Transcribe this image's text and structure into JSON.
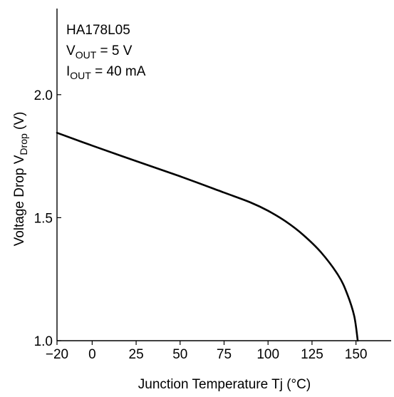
{
  "chart_data": {
    "type": "line",
    "title": "",
    "annotations": {
      "device": "HA178L05",
      "vout": {
        "main": "V",
        "sub": "OUT",
        "rest": " = 5 V"
      },
      "iout": {
        "main": "I",
        "sub": "OUT",
        "rest": " = 40 mA"
      }
    },
    "xlabel": "Junction Temperature  Tj  (°C)",
    "ylabel": {
      "main": "Voltage Drop  V",
      "sub": "Drop",
      "rest": "  (V)"
    },
    "xlim": [
      -20,
      170
    ],
    "ylim": [
      1.0,
      2.35
    ],
    "x_ticks": [
      -20,
      0,
      25,
      50,
      75,
      100,
      125,
      150
    ],
    "x_tick_labels": [
      "−20",
      "0",
      "25",
      "50",
      "75",
      "100",
      "125",
      "150"
    ],
    "y_ticks": [
      1.0,
      1.5,
      2.0
    ],
    "y_tick_labels": [
      "1.0",
      "1.5",
      "2.0"
    ],
    "grid": false,
    "series": [
      {
        "x": [
          -20,
          0,
          25,
          50,
          75,
          90,
          100,
          110,
          120,
          130,
          140,
          145,
          149,
          151
        ],
        "y": [
          1.845,
          1.793,
          1.73,
          1.668,
          1.602,
          1.562,
          1.528,
          1.485,
          1.43,
          1.36,
          1.265,
          1.19,
          1.1,
          1.0
        ]
      }
    ]
  }
}
